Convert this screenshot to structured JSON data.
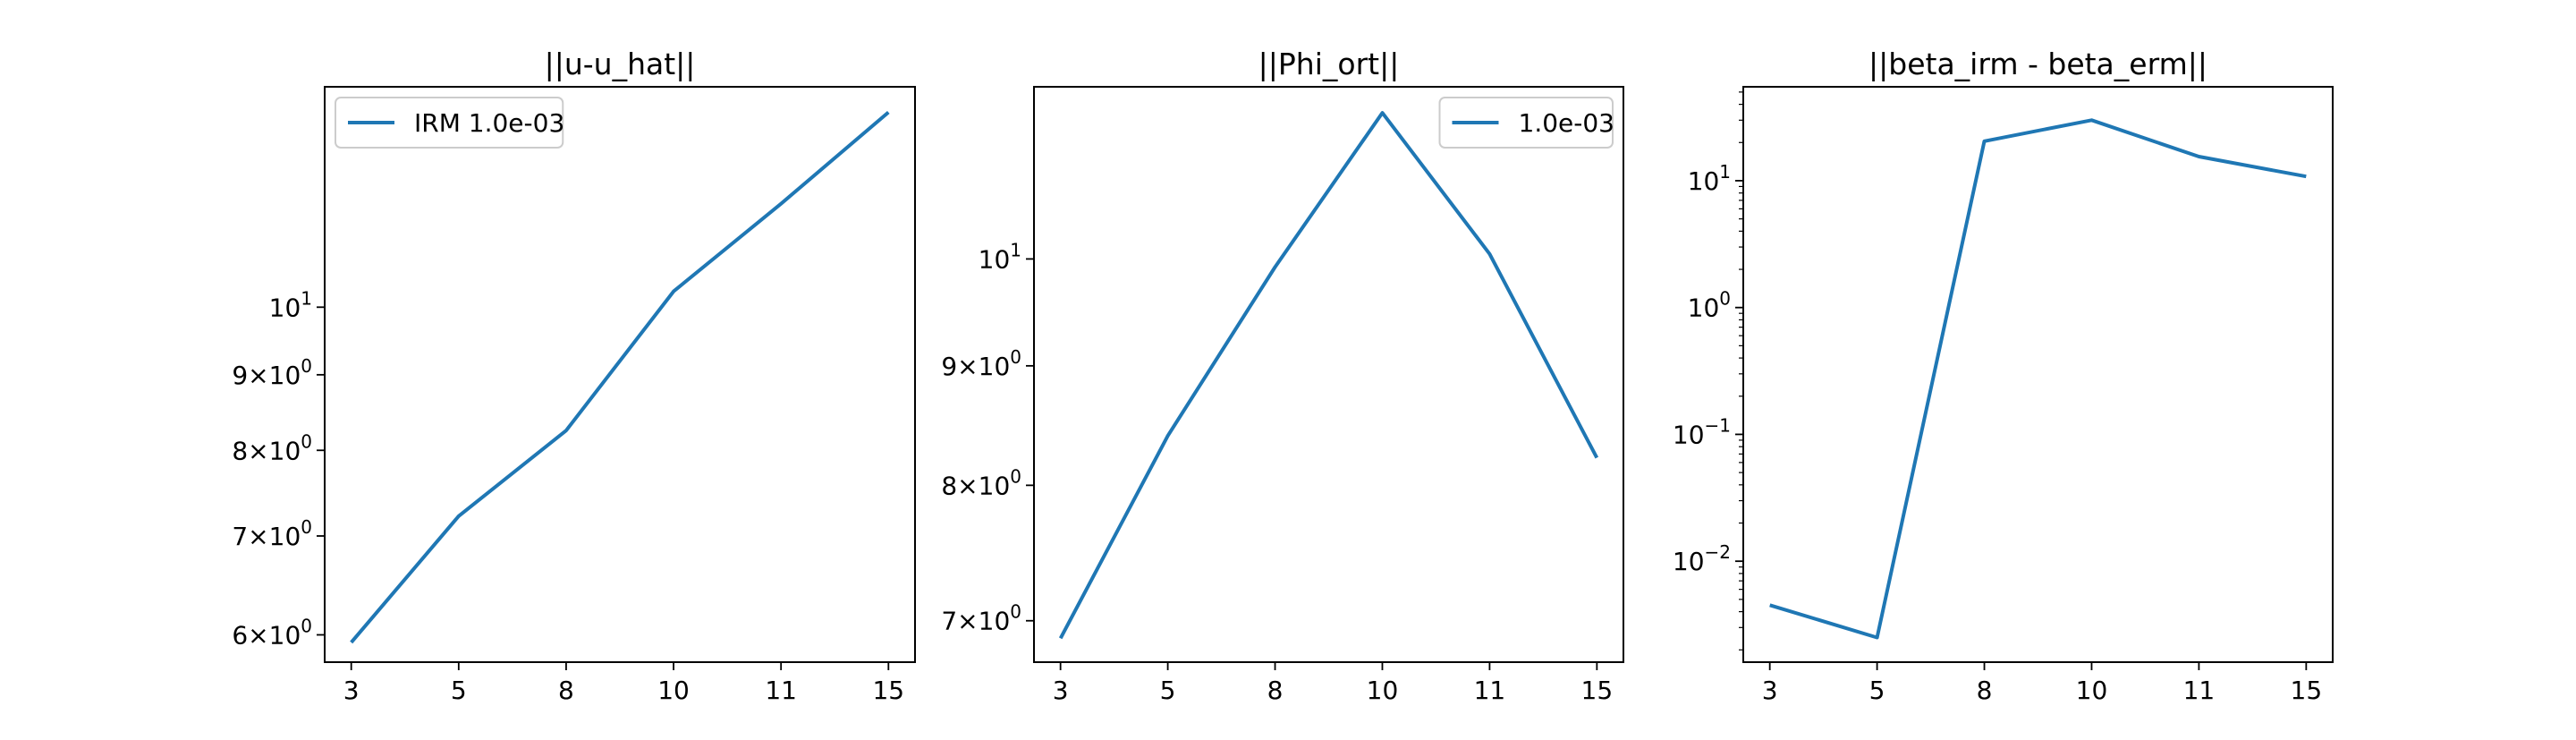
{
  "colors": {
    "series": "#1f77b4"
  },
  "chart_data": [
    {
      "type": "line",
      "title": "||u-u_hat||",
      "x_tick_labels": [
        "3",
        "5",
        "8",
        "10",
        "11",
        "15"
      ],
      "x": [
        3,
        5,
        8,
        10,
        11,
        15
      ],
      "y_scale": "log",
      "ylim": [
        5.75,
        14.1
      ],
      "y_ticks": [
        {
          "value": 6,
          "base": "6×10",
          "exp": "0"
        },
        {
          "value": 7,
          "base": "7×10",
          "exp": "0"
        },
        {
          "value": 8,
          "base": "8×10",
          "exp": "0"
        },
        {
          "value": 9,
          "base": "9×10",
          "exp": "0"
        },
        {
          "value": 10,
          "base": "10",
          "exp": "1"
        }
      ],
      "minor_ticks": [],
      "series": [
        {
          "name": "IRM 1.0e-03",
          "values": [
            5.93,
            7.22,
            8.25,
            10.25,
            11.75,
            13.55
          ]
        }
      ],
      "legend": "upper left"
    },
    {
      "type": "line",
      "title": "||Phi_ort||",
      "x_tick_labels": [
        "3",
        "5",
        "8",
        "10",
        "11",
        "15"
      ],
      "x": [
        3,
        5,
        8,
        10,
        11,
        15
      ],
      "y_scale": "log",
      "ylim": [
        6.72,
        11.85
      ],
      "y_ticks": [
        {
          "value": 7,
          "base": "7×10",
          "exp": "0"
        },
        {
          "value": 8,
          "base": "8×10",
          "exp": "0"
        },
        {
          "value": 9,
          "base": "9×10",
          "exp": "0"
        },
        {
          "value": 10,
          "base": "10",
          "exp": "1"
        }
      ],
      "minor_ticks": [],
      "series": [
        {
          "name": "1.0e-03",
          "values": [
            6.88,
            8.4,
            9.92,
            11.55,
            10.05,
            8.22
          ]
        }
      ],
      "legend": "upper right"
    },
    {
      "type": "line",
      "title": "||beta_irm - beta_erm||",
      "x_tick_labels": [
        "3",
        "5",
        "8",
        "10",
        "11",
        "15"
      ],
      "x": [
        3,
        5,
        8,
        10,
        11,
        15
      ],
      "y_scale": "log",
      "ylim": [
        0.0016,
        55
      ],
      "y_ticks": [
        {
          "value": 0.01,
          "base": "10",
          "exp": "−2"
        },
        {
          "value": 0.1,
          "base": "10",
          "exp": "−1"
        },
        {
          "value": 1,
          "base": "10",
          "exp": "0"
        },
        {
          "value": 10,
          "base": "10",
          "exp": "1"
        }
      ],
      "minor_ticks": [
        0.002,
        0.003,
        0.004,
        0.005,
        0.006,
        0.007,
        0.008,
        0.009,
        0.02,
        0.03,
        0.04,
        0.05,
        0.06,
        0.07,
        0.08,
        0.09,
        0.2,
        0.3,
        0.4,
        0.5,
        0.6,
        0.7,
        0.8,
        0.9,
        2,
        3,
        4,
        5,
        6,
        7,
        8,
        9,
        20,
        30,
        40,
        50
      ],
      "series": [
        {
          "values": [
            0.0045,
            0.0025,
            20.5,
            30.0,
            15.5,
            10.8
          ]
        }
      ],
      "legend": "none"
    }
  ]
}
